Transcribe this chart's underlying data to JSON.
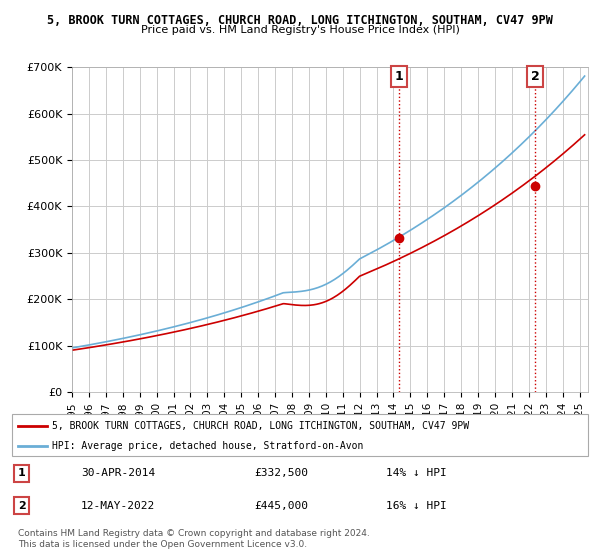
{
  "title1": "5, BROOK TURN COTTAGES, CHURCH ROAD, LONG ITCHINGTON, SOUTHAM, CV47 9PW",
  "title2": "Price paid vs. HM Land Registry's House Price Index (HPI)",
  "ylabel_ticks": [
    "£0",
    "£100K",
    "£200K",
    "£300K",
    "£400K",
    "£500K",
    "£600K",
    "£700K"
  ],
  "ylim": [
    0,
    700000
  ],
  "xlim_start": 1995.0,
  "xlim_end": 2025.5,
  "hpi_color": "#6aaed6",
  "price_color": "#cc0000",
  "marker_color_1": "#cc0000",
  "marker_color_2": "#cc0000",
  "vline_color": "#cc0000",
  "vline_style": ":",
  "grid_color": "#cccccc",
  "transaction_1_x": 2014.33,
  "transaction_1_y": 332500,
  "transaction_2_x": 2022.37,
  "transaction_2_y": 445000,
  "legend_line1": "5, BROOK TURN COTTAGES, CHURCH ROAD, LONG ITCHINGTON, SOUTHAM, CV47 9PW",
  "legend_line2": "HPI: Average price, detached house, Stratford-on-Avon",
  "table_row1_num": "1",
  "table_row1_date": "30-APR-2014",
  "table_row1_price": "£332,500",
  "table_row1_hpi": "14% ↓ HPI",
  "table_row2_num": "2",
  "table_row2_date": "12-MAY-2022",
  "table_row2_price": "£445,000",
  "table_row2_hpi": "16% ↓ HPI",
  "footer": "Contains HM Land Registry data © Crown copyright and database right 2024.\nThis data is licensed under the Open Government Licence v3.0.",
  "background_color": "#ffffff"
}
